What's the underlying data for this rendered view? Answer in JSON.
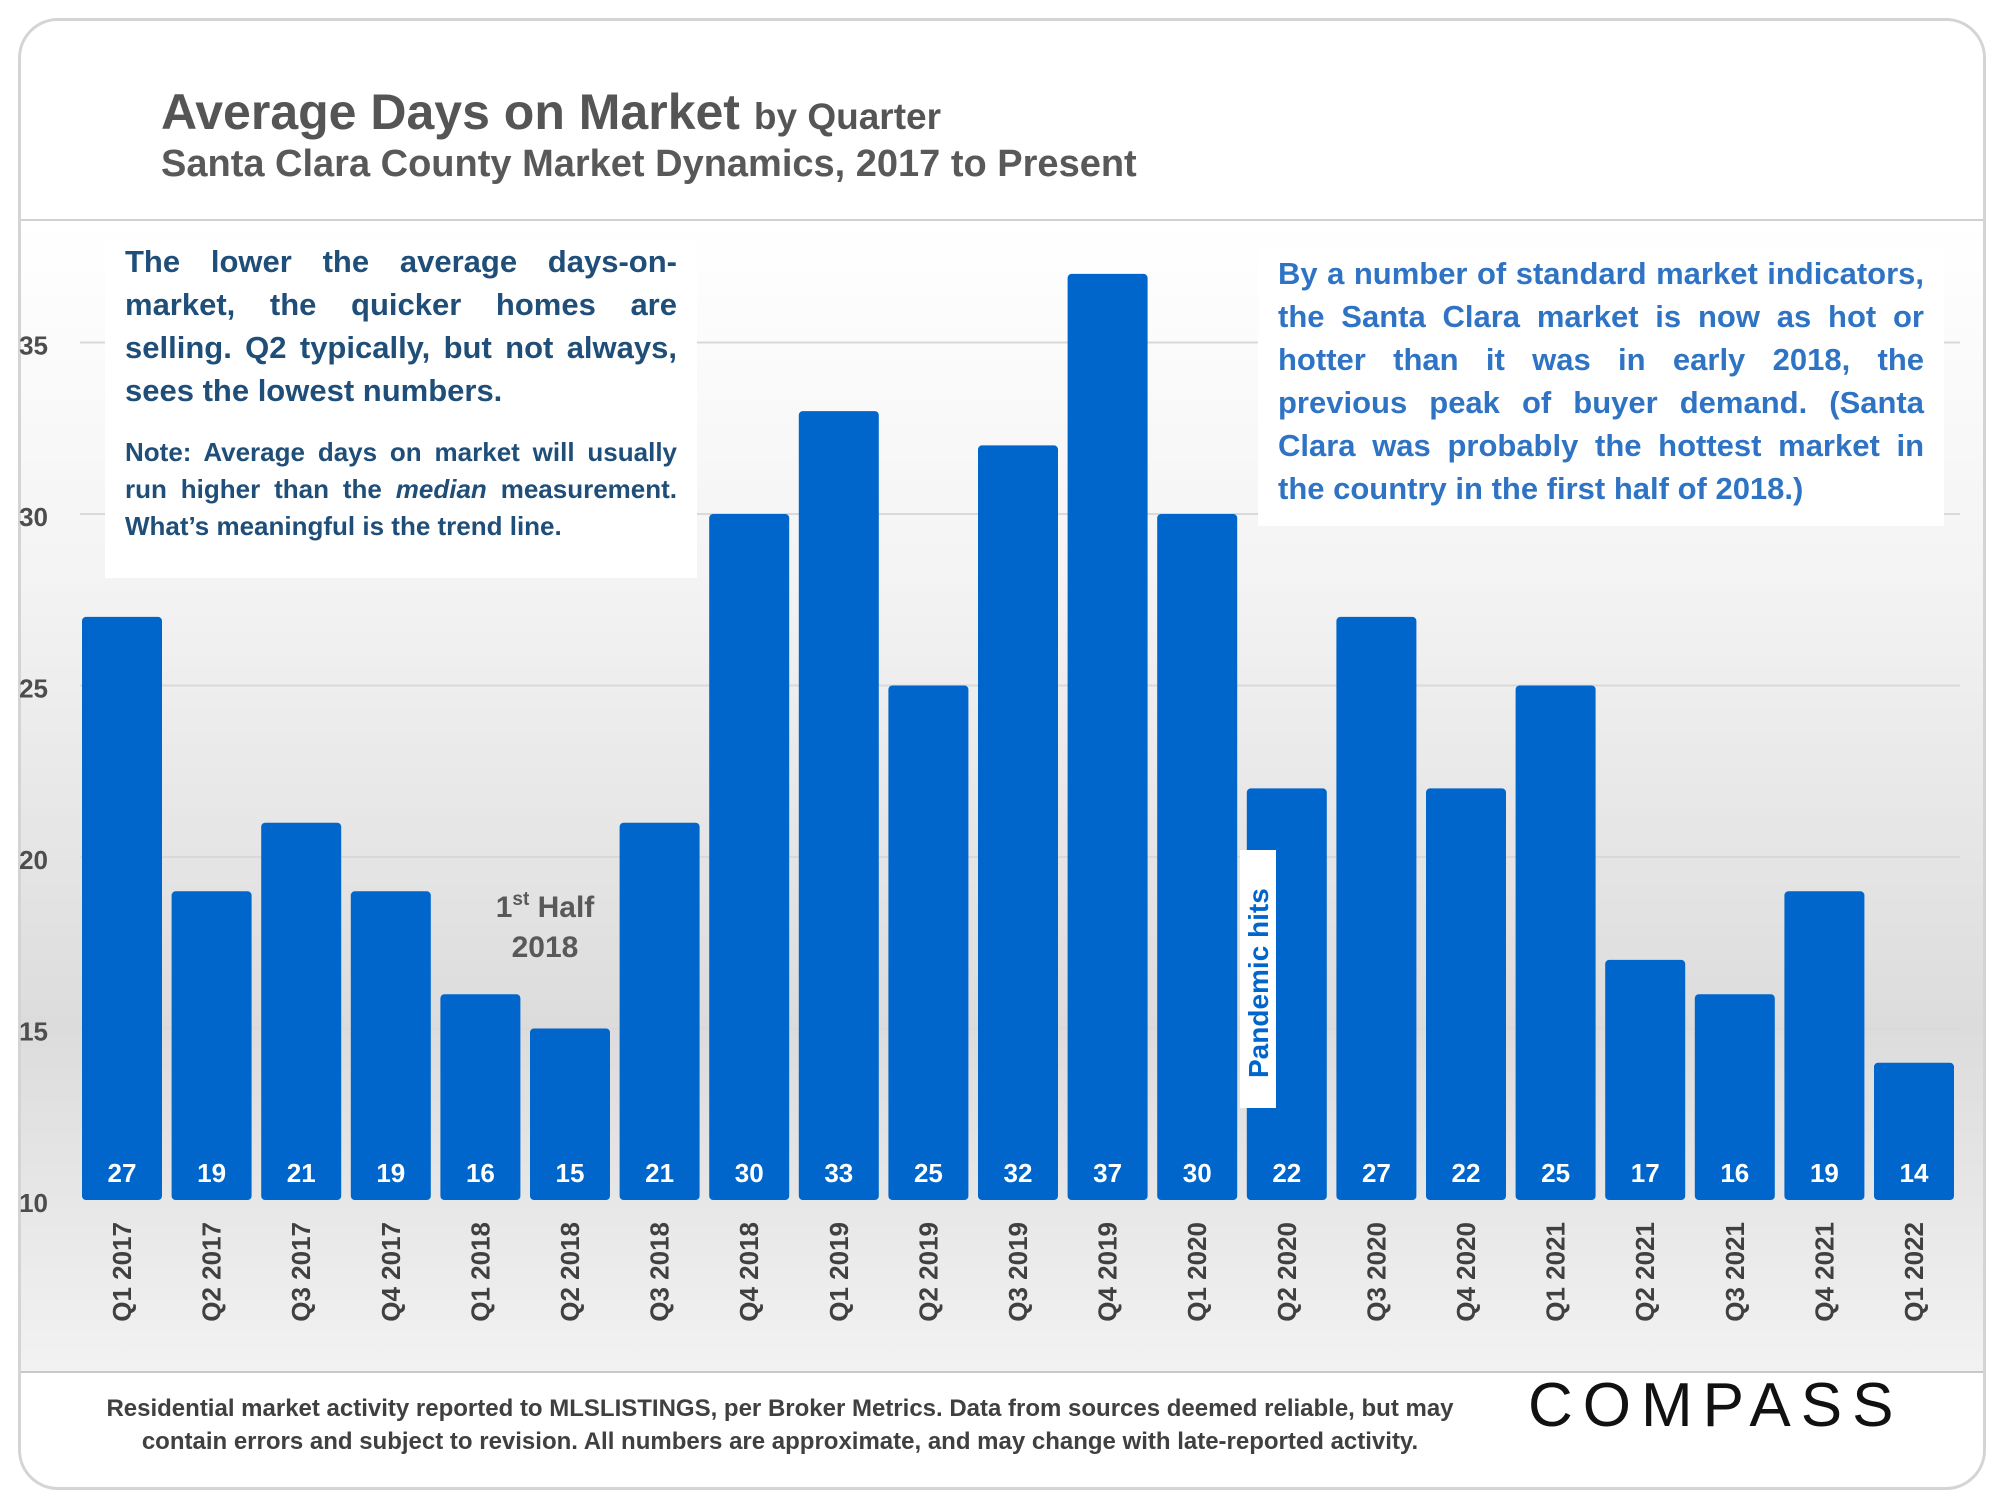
{
  "title": {
    "main": "Average Days on Market",
    "by": "by Quarter",
    "subtitle": "Santa Clara County Market Dynamics, 2017 to Present"
  },
  "notes": {
    "left_main": "The lower the average days-on-market, the quicker homes are selling. Q2 typically, but not always, sees the lowest numbers.",
    "left_note_before": "Note: Average days on market will usually run higher than the ",
    "left_note_emph": "median",
    "left_note_after": " measurement. What’s meaningful is the trend line.",
    "right": "By a number of standard market indicators, the Santa Clara market is now as hot or hotter than it was in early 2018, the previous peak of buyer demand. (Santa Clara was probably the hottest market in the country in the first half of 2018.)"
  },
  "footer": {
    "line1": "Residential market activity reported to MLSLISTINGS, per Broker Metrics. Data from sources deemed reliable, but may",
    "line2": "contain errors and subject to revision. All numbers are approximate, and may change with late-reported activity."
  },
  "brand": "COMPASS",
  "colors": {
    "bar": "#0066cc",
    "title": "#555555",
    "left_note": "#1f4e79",
    "right_note": "#2f74c4"
  },
  "chart_data": {
    "type": "bar",
    "categories": [
      "Q1 2017",
      "Q2 2017",
      "Q3 2017",
      "Q4 2017",
      "Q1 2018",
      "Q2 2018",
      "Q3 2018",
      "Q4 2018",
      "Q1 2019",
      "Q2 2019",
      "Q3 2019",
      "Q4 2019",
      "Q1 2020",
      "Q2 2020",
      "Q3 2020",
      "Q4 2020",
      "Q1 2021",
      "Q2 2021",
      "Q3 2021",
      "Q4 2021",
      "Q1 2022"
    ],
    "values": [
      27,
      19,
      21,
      19,
      16,
      15,
      21,
      30,
      33,
      25,
      32,
      37,
      30,
      22,
      27,
      22,
      25,
      17,
      16,
      19,
      14
    ],
    "ylim": [
      10,
      38
    ],
    "yticks": [
      10,
      15,
      20,
      25,
      30,
      35
    ],
    "grid": true,
    "annotations": {
      "half_label_pre": "1",
      "half_label_sup": "st",
      "half_label_post": " Half",
      "half_label_line2": "2018",
      "pandemic": "Pandemic hits"
    }
  }
}
